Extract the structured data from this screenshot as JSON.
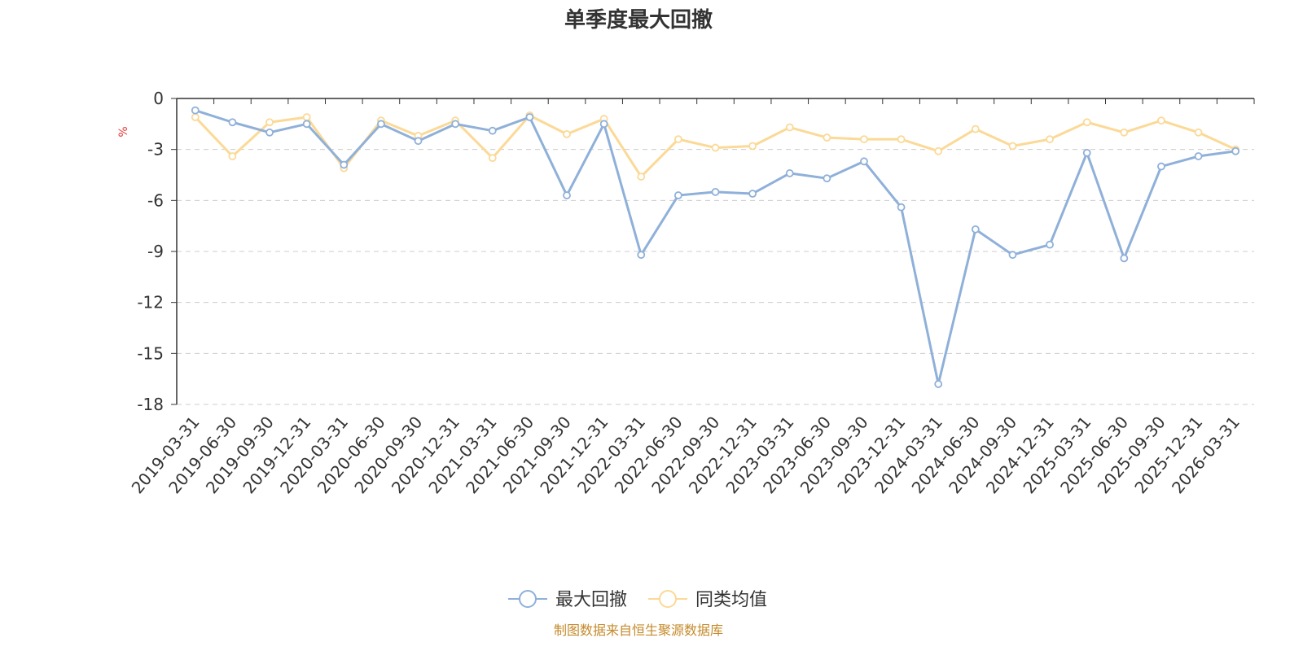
{
  "colors": {
    "series_drawdown": "#8fb0d9",
    "series_peer_avg": "#fbd997",
    "axis": "#333333",
    "grid": "#cccccc",
    "unit": "#e23a3a",
    "source": "#c58a2a"
  },
  "chart_data": {
    "type": "line",
    "title": "单季度最大回撤",
    "ylabel": "%",
    "ylim": [
      -18,
      0
    ],
    "yticks": [
      "0",
      "-3",
      "-6",
      "-9",
      "-12",
      "-15",
      "-18"
    ],
    "ytick_values": [
      0,
      -3,
      -6,
      -9,
      -12,
      -15,
      -18
    ],
    "grid": "horizontal dashed",
    "legend_position": "bottom-center",
    "categories": [
      "2019-03-31",
      "2019-06-30",
      "2019-09-30",
      "2019-12-31",
      "2020-03-31",
      "2020-06-30",
      "2020-09-30",
      "2020-12-31",
      "2021-03-31",
      "2021-06-30",
      "2021-09-30",
      "2021-12-31",
      "2022-03-31",
      "2022-06-30",
      "2022-09-30",
      "2022-12-31",
      "2023-03-31",
      "2023-06-30",
      "2023-09-30",
      "2023-12-31",
      "2024-03-31",
      "2024-06-30",
      "2024-09-30",
      "2024-12-31",
      "2025-03-31",
      "2025-06-30",
      "2025-09-30",
      "2025-12-31",
      "2026-03-31"
    ],
    "series": [
      {
        "name": "最大回撤",
        "values": [
          -0.7,
          -1.4,
          -2.0,
          -1.5,
          -3.9,
          -1.5,
          -2.5,
          -1.5,
          -1.9,
          -1.1,
          -5.7,
          -1.5,
          -9.2,
          -5.7,
          -5.5,
          -5.6,
          -4.4,
          -4.7,
          -3.7,
          -6.4,
          -16.8,
          -7.7,
          -9.2,
          -8.6,
          -3.2,
          -9.4,
          -4.0,
          -3.4,
          -3.1
        ]
      },
      {
        "name": "同类均值",
        "values": [
          -1.1,
          -3.4,
          -1.4,
          -1.1,
          -4.1,
          -1.3,
          -2.2,
          -1.3,
          -3.5,
          -1.0,
          -2.1,
          -1.2,
          -4.6,
          -2.4,
          -2.9,
          -2.8,
          -1.7,
          -2.3,
          -2.4,
          -2.4,
          -3.1,
          -1.8,
          -2.8,
          -2.4,
          -1.4,
          -2.0,
          -1.3,
          -2.0,
          -3.0
        ]
      }
    ]
  },
  "source_text": "制图数据来自恒生聚源数据库"
}
